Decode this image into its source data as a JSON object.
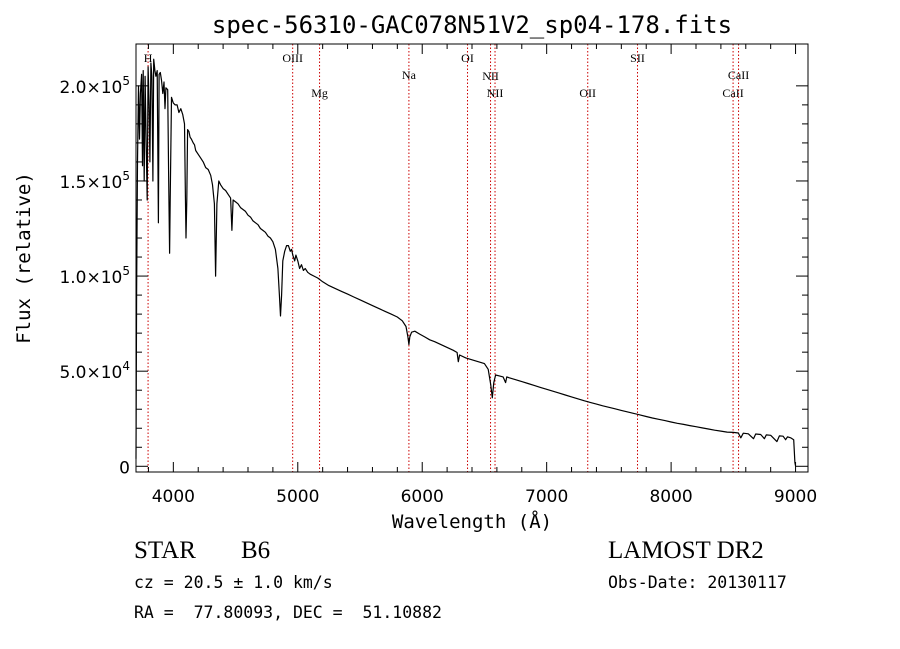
{
  "chart_data": {
    "type": "line",
    "title": "spec-56310-GAC078N51V2_sp04-178.fits",
    "xlabel": "Wavelength (Å)",
    "ylabel": "Flux (relative)",
    "xlim": [
      3700,
      9100
    ],
    "ylim": [
      -3000,
      222000
    ],
    "grid": false,
    "x_ticks": [
      {
        "value": 4000,
        "label": "4000"
      },
      {
        "value": 5000,
        "label": "5000"
      },
      {
        "value": 6000,
        "label": "6000"
      },
      {
        "value": 7000,
        "label": "7000"
      },
      {
        "value": 8000,
        "label": "8000"
      },
      {
        "value": 9000,
        "label": "9000"
      }
    ],
    "y_ticks": [
      {
        "value": 0,
        "mantissa": "0",
        "exp": ""
      },
      {
        "value": 50000,
        "mantissa": "5.0×10",
        "exp": "4"
      },
      {
        "value": 100000,
        "mantissa": "1.0×10",
        "exp": "5"
      },
      {
        "value": 150000,
        "mantissa": "1.5×10",
        "exp": "5"
      },
      {
        "value": 200000,
        "mantissa": "2.0×10",
        "exp": "5"
      }
    ],
    "series": [
      {
        "color": "#000000",
        "points": [
          [
            3700,
            4000
          ],
          [
            3705,
            90000
          ],
          [
            3712,
            160000
          ],
          [
            3720,
            200000
          ],
          [
            3728,
            172000
          ],
          [
            3735,
            196000
          ],
          [
            3745,
            206000
          ],
          [
            3752,
            158000
          ],
          [
            3758,
            208000
          ],
          [
            3766,
            150000
          ],
          [
            3773,
            205000
          ],
          [
            3780,
            175000
          ],
          [
            3790,
            140000
          ],
          [
            3797,
            210000
          ],
          [
            3805,
            190000
          ],
          [
            3812,
            160000
          ],
          [
            3820,
            212000
          ],
          [
            3828,
            205000
          ],
          [
            3836,
            150000
          ],
          [
            3842,
            214000
          ],
          [
            3852,
            208000
          ],
          [
            3860,
            205000
          ],
          [
            3870,
            208000
          ],
          [
            3880,
            128000
          ],
          [
            3886,
            206000
          ],
          [
            3895,
            207000
          ],
          [
            3905,
            203000
          ],
          [
            3915,
            196000
          ],
          [
            3925,
            202000
          ],
          [
            3933,
            188000
          ],
          [
            3940,
            199000
          ],
          [
            3955,
            198000
          ],
          [
            3963,
            150000
          ],
          [
            3970,
            112000
          ],
          [
            3975,
            140000
          ],
          [
            3985,
            194000
          ],
          [
            4000,
            191000
          ],
          [
            4015,
            190000
          ],
          [
            4030,
            190000
          ],
          [
            4045,
            186000
          ],
          [
            4060,
            188000
          ],
          [
            4075,
            185000
          ],
          [
            4090,
            180000
          ],
          [
            4097,
            142000
          ],
          [
            4102,
            120000
          ],
          [
            4108,
            140000
          ],
          [
            4115,
            177000
          ],
          [
            4125,
            176000
          ],
          [
            4135,
            173000
          ],
          [
            4145,
            172000
          ],
          [
            4160,
            170000
          ],
          [
            4170,
            169000
          ],
          [
            4180,
            166000
          ],
          [
            4200,
            164000
          ],
          [
            4220,
            162000
          ],
          [
            4240,
            160000
          ],
          [
            4260,
            157000
          ],
          [
            4280,
            156000
          ],
          [
            4300,
            153000
          ],
          [
            4315,
            148000
          ],
          [
            4330,
            138000
          ],
          [
            4340,
            100000
          ],
          [
            4350,
            138000
          ],
          [
            4365,
            150000
          ],
          [
            4380,
            148000
          ],
          [
            4400,
            146000
          ],
          [
            4420,
            145000
          ],
          [
            4440,
            143000
          ],
          [
            4460,
            141000
          ],
          [
            4471,
            124000
          ],
          [
            4480,
            140000
          ],
          [
            4500,
            139000
          ],
          [
            4520,
            138000
          ],
          [
            4540,
            136000
          ],
          [
            4560,
            135000
          ],
          [
            4580,
            134000
          ],
          [
            4600,
            132000
          ],
          [
            4620,
            131000
          ],
          [
            4640,
            129000
          ],
          [
            4660,
            128000
          ],
          [
            4680,
            127000
          ],
          [
            4700,
            125000
          ],
          [
            4720,
            124000
          ],
          [
            4740,
            123000
          ],
          [
            4760,
            121000
          ],
          [
            4780,
            120000
          ],
          [
            4800,
            118000
          ],
          [
            4820,
            114000
          ],
          [
            4840,
            104000
          ],
          [
            4852,
            90000
          ],
          [
            4861,
            79000
          ],
          [
            4870,
            90000
          ],
          [
            4880,
            108000
          ],
          [
            4895,
            113000
          ],
          [
            4910,
            116000
          ],
          [
            4925,
            116000
          ],
          [
            4940,
            113000
          ],
          [
            4950,
            114000
          ],
          [
            4960,
            111000
          ],
          [
            4975,
            108000
          ],
          [
            4985,
            111000
          ],
          [
            5000,
            108000
          ],
          [
            5015,
            104000
          ],
          [
            5030,
            106000
          ],
          [
            5045,
            103000
          ],
          [
            5060,
            104000
          ],
          [
            5080,
            102000
          ],
          [
            5100,
            101000
          ],
          [
            5130,
            100000
          ],
          [
            5160,
            99000
          ],
          [
            5200,
            97000
          ],
          [
            5250,
            95000
          ],
          [
            5300,
            93500
          ],
          [
            5350,
            92000
          ],
          [
            5400,
            90500
          ],
          [
            5450,
            89000
          ],
          [
            5500,
            87500
          ],
          [
            5550,
            86000
          ],
          [
            5600,
            84500
          ],
          [
            5650,
            83000
          ],
          [
            5700,
            81500
          ],
          [
            5750,
            80000
          ],
          [
            5800,
            78500
          ],
          [
            5840,
            76500
          ],
          [
            5870,
            73500
          ],
          [
            5885,
            68000
          ],
          [
            5893,
            64000
          ],
          [
            5900,
            68000
          ],
          [
            5915,
            70500
          ],
          [
            5940,
            71000
          ],
          [
            5980,
            69500
          ],
          [
            6020,
            68000
          ],
          [
            6060,
            66500
          ],
          [
            6100,
            65500
          ],
          [
            6150,
            64000
          ],
          [
            6200,
            62500
          ],
          [
            6250,
            61000
          ],
          [
            6280,
            59800
          ],
          [
            6290,
            55000
          ],
          [
            6300,
            58500
          ],
          [
            6350,
            57000
          ],
          [
            6400,
            56000
          ],
          [
            6450,
            55000
          ],
          [
            6500,
            54000
          ],
          [
            6530,
            51000
          ],
          [
            6550,
            43000
          ],
          [
            6563,
            36000
          ],
          [
            6575,
            44000
          ],
          [
            6590,
            48000
          ],
          [
            6620,
            47500
          ],
          [
            6650,
            47000
          ],
          [
            6670,
            44000
          ],
          [
            6680,
            47000
          ],
          [
            6700,
            46500
          ],
          [
            6750,
            45500
          ],
          [
            6800,
            44500
          ],
          [
            6850,
            43500
          ],
          [
            6900,
            42500
          ],
          [
            6950,
            41500
          ],
          [
            7000,
            40500
          ],
          [
            7050,
            39500
          ],
          [
            7100,
            38500
          ],
          [
            7150,
            37500
          ],
          [
            7200,
            36500
          ],
          [
            7250,
            35500
          ],
          [
            7300,
            34500
          ],
          [
            7350,
            33600
          ],
          [
            7400,
            32700
          ],
          [
            7450,
            31800
          ],
          [
            7500,
            31000
          ],
          [
            7550,
            30200
          ],
          [
            7600,
            29400
          ],
          [
            7650,
            28600
          ],
          [
            7700,
            27800
          ],
          [
            7750,
            27000
          ],
          [
            7800,
            26200
          ],
          [
            7850,
            25400
          ],
          [
            7900,
            24700
          ],
          [
            7950,
            24000
          ],
          [
            8000,
            23300
          ],
          [
            8050,
            22600
          ],
          [
            8100,
            22000
          ],
          [
            8150,
            21400
          ],
          [
            8200,
            20800
          ],
          [
            8250,
            20200
          ],
          [
            8300,
            19600
          ],
          [
            8350,
            19000
          ],
          [
            8400,
            18500
          ],
          [
            8450,
            18000
          ],
          [
            8500,
            17800
          ],
          [
            8540,
            17500
          ],
          [
            8560,
            15000
          ],
          [
            8580,
            17400
          ],
          [
            8620,
            17100
          ],
          [
            8662,
            14500
          ],
          [
            8680,
            17000
          ],
          [
            8720,
            16700
          ],
          [
            8750,
            14500
          ],
          [
            8765,
            16500
          ],
          [
            8800,
            16300
          ],
          [
            8850,
            13000
          ],
          [
            8870,
            16000
          ],
          [
            8900,
            15800
          ],
          [
            8920,
            14000
          ],
          [
            8935,
            15500
          ],
          [
            8960,
            15000
          ],
          [
            8985,
            14000
          ],
          [
            8995,
            2000
          ],
          [
            9000,
            0
          ]
        ]
      }
    ],
    "lines": [
      {
        "wavelength": 3797,
        "label": "H",
        "row": 0
      },
      {
        "wavelength": 4959,
        "label": "OIII",
        "row": 0
      },
      {
        "wavelength": 5175,
        "label": "Mg",
        "row": 1
      },
      {
        "wavelength": 5893,
        "label": "Na",
        "row": 2
      },
      {
        "wavelength": 6364,
        "label": "OI",
        "row": 0
      },
      {
        "wavelength": 6549,
        "label": "NII",
        "row": 3
      },
      {
        "wavelength": 6585,
        "label": "NII",
        "row": 4
      },
      {
        "wavelength": 7330,
        "label": "OII",
        "row": 1
      },
      {
        "wavelength": 7730,
        "label": "SII",
        "row": 0
      },
      {
        "wavelength": 8498,
        "label": "CaII",
        "row": 1
      },
      {
        "wavelength": 8542,
        "label": "CaII",
        "row": 2
      }
    ]
  },
  "info": {
    "object_type": "STAR",
    "subclass": "B6",
    "survey": "LAMOST DR2",
    "redshift": "cz = 20.5 ± 1.0 km/s",
    "obs_date": "Obs-Date: 20130117",
    "coords": "RA =  77.80093, DEC =  51.10882"
  }
}
